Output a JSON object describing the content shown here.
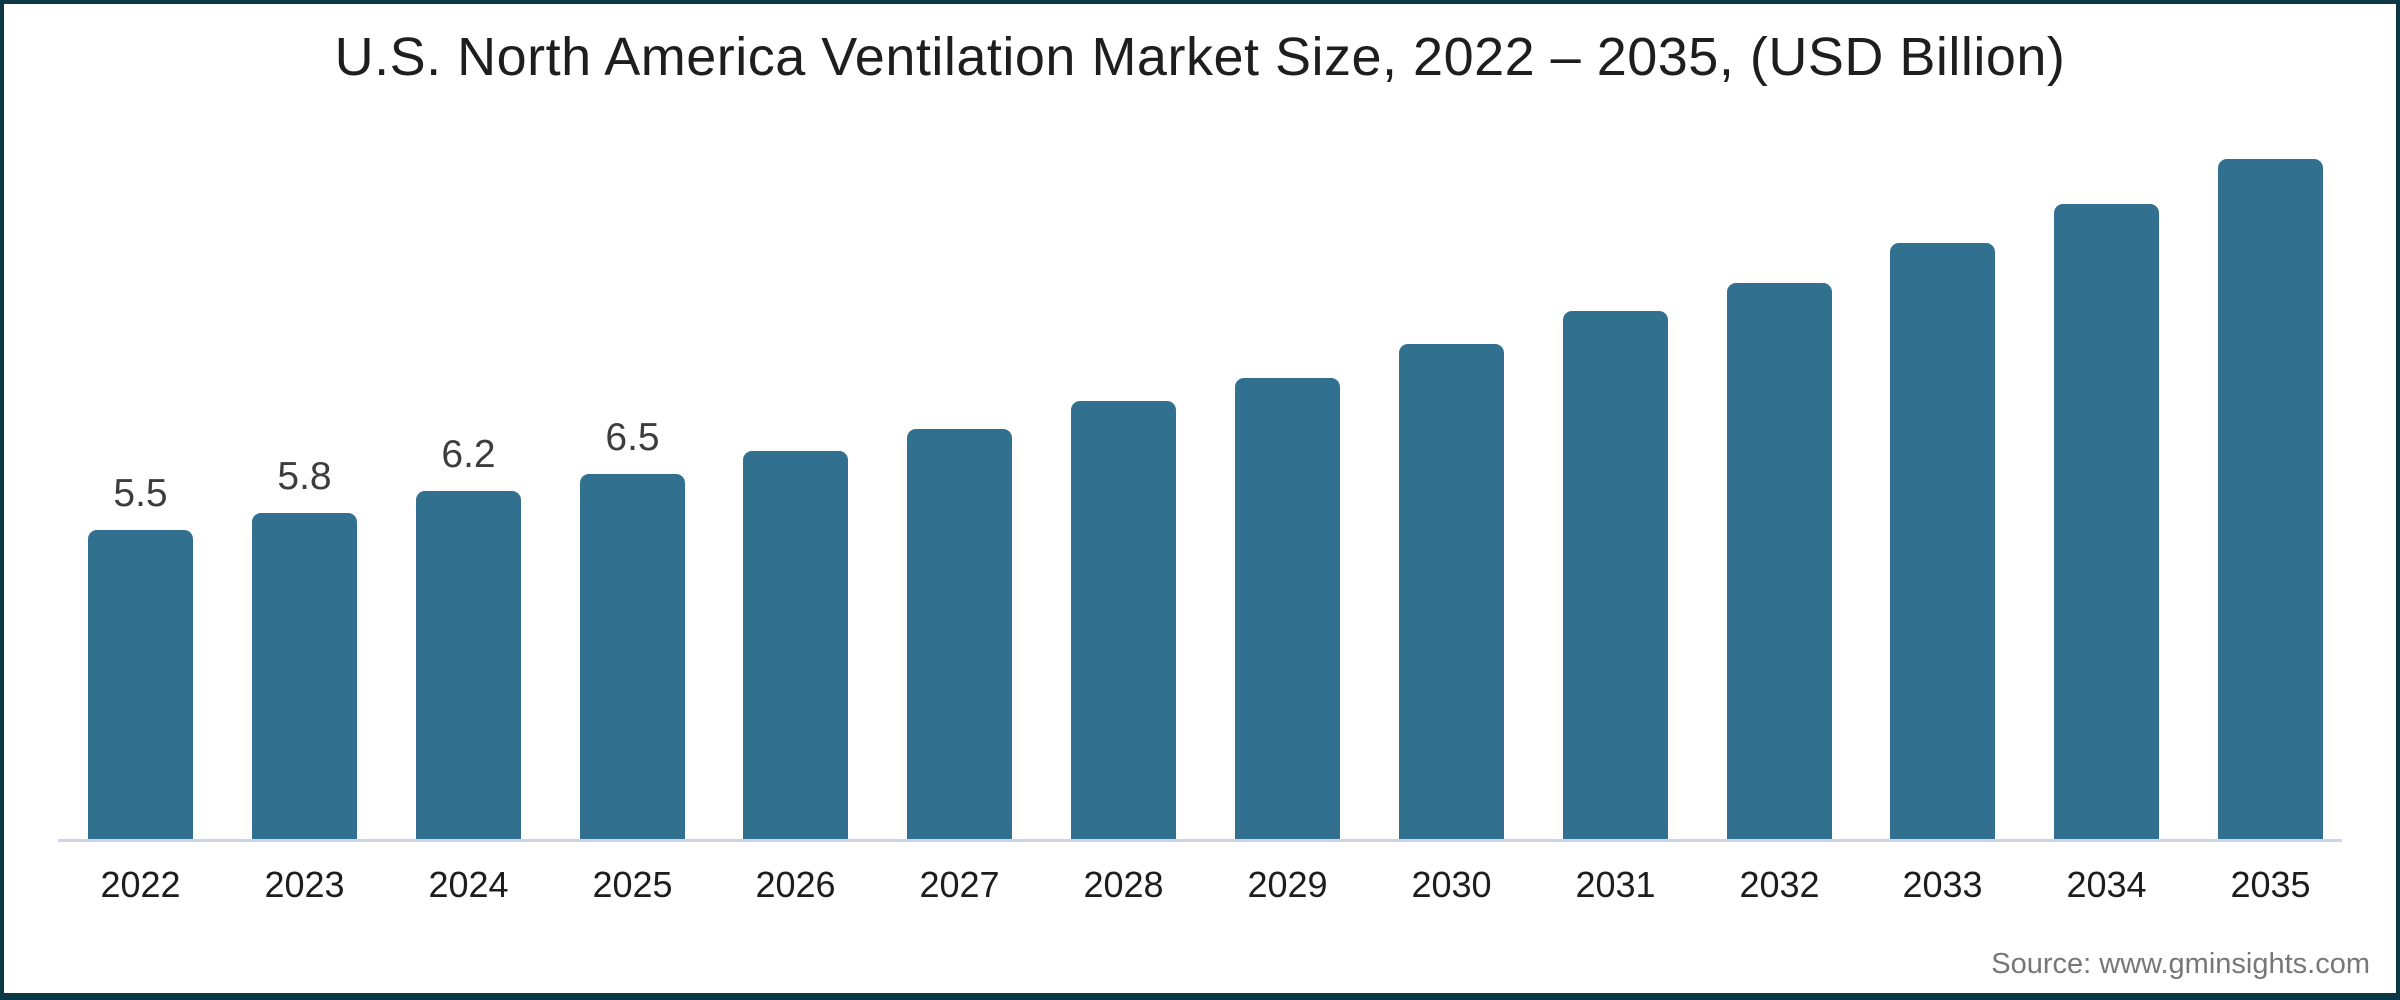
{
  "title": "U.S. North America Ventilation Market Size, 2022 – 2035, (USD Billion)",
  "source": "Source: www.gminsights.com",
  "colors": {
    "background": "#FFFFFF",
    "bar": "#31708E",
    "border": "#0C3846",
    "axis_line": "#CDD5E8",
    "title_text": "#1E1E1E",
    "value_label_text": "#3D3D3D",
    "year_label_text": "#1D1D1D",
    "source_text": "#777777"
  },
  "chart_data": {
    "type": "bar",
    "title": "U.S. North America Ventilation Market Size, 2022 – 2035, (USD Billion)",
    "categories": [
      "2022",
      "2023",
      "2024",
      "2025",
      "2026",
      "2027",
      "2028",
      "2029",
      "2030",
      "2031",
      "2032",
      "2033",
      "2034",
      "2035"
    ],
    "values": [
      5.5,
      5.8,
      6.2,
      6.5,
      6.9,
      7.3,
      7.8,
      8.2,
      8.8,
      9.4,
      9.9,
      10.6,
      11.3,
      12.1
    ],
    "value_labels_shown": [
      "5.5",
      "5.8",
      "6.2",
      "6.5",
      "",
      "",
      "",
      "",
      "",
      "",
      "",
      "",
      "",
      ""
    ],
    "xlabel": "",
    "ylabel": "USD Billion",
    "ylim": [
      0,
      12.8
    ],
    "gridlines": false,
    "legend": "none",
    "bar_corner_radius": "rounded-top"
  }
}
